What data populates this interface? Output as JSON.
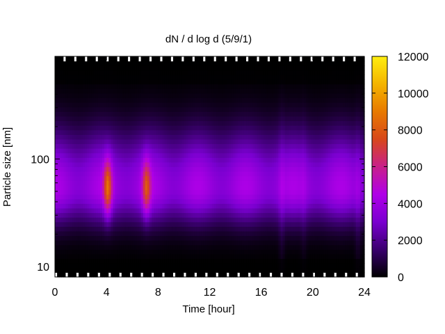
{
  "chart_data": {
    "type": "heatmap",
    "title": "dN / d log d (5/9/1)",
    "xlabel": "Time [hour]",
    "ylabel": "Particle size [nm]",
    "x_ticks": [
      "0",
      "4",
      "8",
      "12",
      "16",
      "20",
      "24"
    ],
    "x_tick_values": [
      0,
      4,
      8,
      12,
      16,
      20,
      24
    ],
    "xlim": [
      0,
      24
    ],
    "y_scale": "log",
    "y_ticks": [
      "10",
      "100"
    ],
    "y_tick_values": [
      10,
      100
    ],
    "ylim": [
      8,
      900
    ],
    "colorbar": {
      "ticks": [
        "0",
        "2000",
        "4000",
        "6000",
        "8000",
        "10000",
        "12000"
      ],
      "tick_values": [
        0,
        2000,
        4000,
        6000,
        8000,
        10000,
        12000
      ],
      "range": [
        0,
        12000
      ],
      "palette": [
        "#000000",
        "#3a006e",
        "#7a00d0",
        "#b000e8",
        "#c8208a",
        "#d8481a",
        "#e87a00",
        "#f4b400",
        "#ffee10"
      ]
    },
    "mode_diameter_nm": 55,
    "baseline_peak_dNdlogd": 4400,
    "events": [
      {
        "time_hour": 4.1,
        "peak_dNdlogd": 6800
      },
      {
        "time_hour": 7.1,
        "peak_dNdlogd": 6000
      },
      {
        "time_hour": 17.6,
        "peak_dNdlogd": 3200
      },
      {
        "time_hour": 19.3,
        "peak_dNdlogd": 2800
      },
      {
        "time_hour": 23.5,
        "peak_dNdlogd": 3200
      }
    ],
    "missing_data": [
      "near 10 nm (lowest bins)",
      "near 800 nm (highest bins)"
    ],
    "grid": false,
    "legend": "colorbar right"
  },
  "colors": {
    "axis": "#000000",
    "missing": "#ffffff"
  }
}
